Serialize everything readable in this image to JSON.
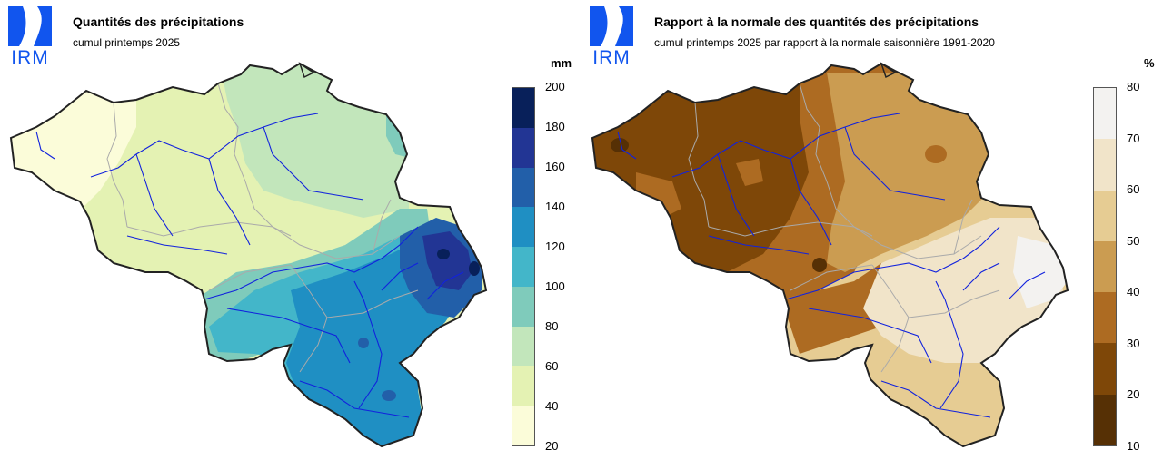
{
  "logo": {
    "text": "IRM",
    "color": "#1155ee"
  },
  "panels": [
    {
      "title": "Quantités des précipitations",
      "subtitle": "cumul printemps 2025",
      "unit": "mm",
      "legend": {
        "labels": [
          "200",
          "180",
          "160",
          "140",
          "120",
          "100",
          "80",
          "60",
          "40",
          "20"
        ],
        "colors": [
          "#08205a",
          "#223594",
          "#225fa9",
          "#1f8fc3",
          "#43b6c9",
          "#7fcbbb",
          "#c2e6bb",
          "#e4f2b3",
          "#fbfcd9"
        ]
      },
      "map_colors": {
        "west": "#fbfcd9",
        "center": "#e4f2b3",
        "north": "#c2e6bb",
        "northeast": "#7fcbbb",
        "south": "#43b6c9",
        "southeast": "#1f8fc3",
        "east": "#225fa9",
        "east_peak": "#223594",
        "peak": "#08205a"
      }
    },
    {
      "title": "Rapport à la normale des quantités des précipitations",
      "subtitle": "cumul printemps 2025 par rapport à la normale saisonnière 1991-2020",
      "unit": "%",
      "legend": {
        "labels": [
          "80",
          "70",
          "60",
          "50",
          "40",
          "30",
          "20",
          "10"
        ],
        "colors": [
          "#f3f2f0",
          "#f1e4c9",
          "#e6cc93",
          "#cb9c51",
          "#ad6b22",
          "#7e4708",
          "#563005"
        ]
      },
      "map_colors": {
        "west": "#7e4708",
        "center": "#ad6b22",
        "north": "#cb9c51",
        "south": "#e6cc93",
        "southeast": "#f1e4c9",
        "east": "#f3f2f0",
        "dark": "#563005"
      }
    }
  ]
}
